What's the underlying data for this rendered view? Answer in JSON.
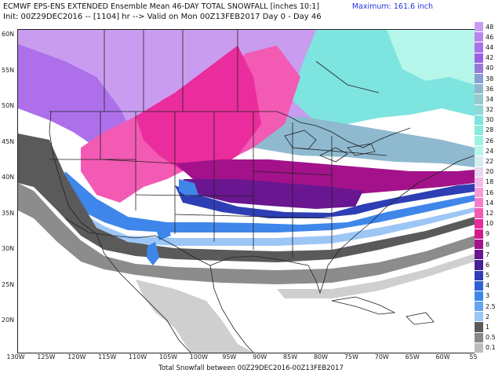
{
  "header": {
    "line1": "ECMWF EPS-ENS EXTENDED Ensemble Mean 46-DAY TOTAL SNOWFALL [inches 10:1]",
    "line2": "Init: 00Z29DEC2016 -- [1104] hr --> Valid on Mon 00Z13FEB2017  Day 0 - Day 46",
    "maximum": "Maximum: 161.6 inch"
  },
  "footer": "Total Snowfall between 00Z29DEC2016-00Z13FEB2017",
  "lat_labels": [
    "60N",
    "55N",
    "50N",
    "45N",
    "40N",
    "35N",
    "30N",
    "25N",
    "20N"
  ],
  "lon_labels": [
    "130W",
    "125W",
    "120W",
    "115W",
    "110W",
    "105W",
    "100W",
    "95W",
    "90W",
    "85W",
    "80W",
    "75W",
    "70W",
    "65W",
    "60W",
    "55"
  ],
  "legend": [
    {
      "label": "48",
      "color": "#c99cf0"
    },
    {
      "label": "46",
      "color": "#bb84ee"
    },
    {
      "label": "44",
      "color": "#ad70ea"
    },
    {
      "label": "42",
      "color": "#a15de6"
    },
    {
      "label": "40",
      "color": "#9a7ad8"
    },
    {
      "label": "38",
      "color": "#8aa0d4"
    },
    {
      "label": "36",
      "color": "#8fb9cf"
    },
    {
      "label": "34",
      "color": "#96c9cc"
    },
    {
      "label": "32",
      "color": "#8ed8d8"
    },
    {
      "label": "30",
      "color": "#7ee4e0"
    },
    {
      "label": "28",
      "color": "#86ecdc"
    },
    {
      "label": "26",
      "color": "#9cf2e0"
    },
    {
      "label": "24",
      "color": "#b6f6ea"
    },
    {
      "label": "22",
      "color": "#d2eef0"
    },
    {
      "label": "20",
      "color": "#e6d6f0"
    },
    {
      "label": "18",
      "color": "#f2b8e6"
    },
    {
      "label": "16",
      "color": "#f79ad8"
    },
    {
      "label": "14",
      "color": "#f67ec8"
    },
    {
      "label": "12",
      "color": "#f25ab4"
    },
    {
      "label": "10",
      "color": "#ea2c9c"
    },
    {
      "label": "9",
      "color": "#d51a8e"
    },
    {
      "label": "8",
      "color": "#a3128a"
    },
    {
      "label": "7",
      "color": "#6a1690"
    },
    {
      "label": "6",
      "color": "#4a2098"
    },
    {
      "label": "5",
      "color": "#2e3eb4"
    },
    {
      "label": "4",
      "color": "#2e62d6"
    },
    {
      "label": "3",
      "color": "#3f86ea"
    },
    {
      "label": "2.5",
      "color": "#64a4f2"
    },
    {
      "label": "2",
      "color": "#9cc6f6"
    },
    {
      "label": "1",
      "color": "#5a5a5a"
    },
    {
      "label": "0.5",
      "color": "#888888"
    },
    {
      "label": "0.1",
      "color": "#bdbdbd"
    }
  ],
  "colors": {
    "lightgray": "#cfcfcf",
    "gray": "#8c8c8c",
    "darkgray": "#5a5a5a",
    "lightblue": "#9cc6f6",
    "blue": "#3f86ea",
    "royal": "#2e3eb4",
    "indigo": "#4a2098",
    "darkpurple": "#6a1690",
    "deepmagenta": "#a3128a",
    "magenta": "#ea2c9c",
    "pink": "#f25ab4",
    "lightpink": "#f79ad8",
    "lavender": "#c99cf0",
    "violet": "#ad70ea",
    "teal": "#8fb9cf",
    "cyan": "#7ee4e0",
    "palecyan": "#b6f6ea",
    "border": "#222222"
  }
}
